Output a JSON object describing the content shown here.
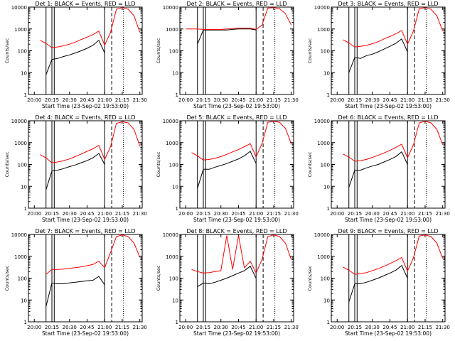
{
  "style": {
    "events_color": "#000000",
    "lld_color": "#ff0000",
    "axis_color": "#000000"
  },
  "chart_data": [
    {
      "type": "line",
      "title": "Det 1: BLACK = Events, RED = LLD",
      "ylabel": "Counts/sec",
      "xlabel": "Start Time (23-Sep-02 19:53:00)",
      "yscale": "log",
      "ylim": [
        1,
        10000
      ],
      "xticks": [
        "20:00",
        "20:15",
        "20:30",
        "20:45",
        "21:00",
        "21:15",
        "21:30"
      ],
      "yticks": [
        "1",
        "10",
        "100",
        "1000",
        "10000"
      ],
      "x": [
        "20:00",
        "20:05",
        "20:10",
        "20:15",
        "20:20",
        "20:25",
        "20:30",
        "20:35",
        "20:40",
        "20:45",
        "20:50",
        "20:55",
        "21:00",
        "21:05",
        "21:10",
        "21:15",
        "21:20",
        "21:25",
        "21:30"
      ],
      "series": [
        {
          "name": "Events",
          "values": [
            null,
            null,
            8,
            40,
            45,
            55,
            65,
            80,
            100,
            130,
            180,
            300,
            80,
            null,
            null,
            null,
            null,
            null,
            null
          ]
        },
        {
          "name": "LLD",
          "values": [
            null,
            300,
            220,
            140,
            150,
            170,
            200,
            250,
            330,
            420,
            550,
            800,
            180,
            700,
            8000,
            9500,
            8000,
            4000,
            700
          ]
        }
      ]
    },
    {
      "type": "line",
      "title": "Det 2: BLACK = Events, RED = LLD",
      "ylabel": "Counts/sec",
      "xlabel": "Start Time (23-Sep-02 19:53:00)",
      "yscale": "log",
      "ylim": [
        1,
        10000
      ],
      "xticks": [
        "20:00",
        "20:15",
        "20:30",
        "20:45",
        "21:00",
        "21:15",
        "21:30"
      ],
      "yticks": [
        "1",
        "10",
        "100",
        "1000",
        "10000"
      ],
      "x": [
        "20:00",
        "20:05",
        "20:10",
        "20:15",
        "20:20",
        "20:25",
        "20:30",
        "20:35",
        "20:40",
        "20:45",
        "20:50",
        "20:55",
        "21:00",
        "21:05",
        "21:10",
        "21:15",
        "21:20",
        "21:25",
        "21:30"
      ],
      "series": [
        {
          "name": "Events",
          "values": [
            null,
            null,
            200,
            900,
            900,
            900,
            900,
            900,
            950,
            1000,
            1000,
            1000,
            900,
            null,
            null,
            null,
            null,
            null,
            null
          ]
        },
        {
          "name": "LLD",
          "values": [
            1000,
            1000,
            1000,
            950,
            950,
            950,
            950,
            1000,
            1050,
            1100,
            1100,
            1100,
            950,
            1500,
            9000,
            9500,
            8500,
            5000,
            1500
          ]
        }
      ]
    },
    {
      "type": "line",
      "title": "Det 3: BLACK = Events, RED = LLD",
      "ylabel": "Counts/sec",
      "xlabel": "Start Time (23-Sep-02 19:53:00)",
      "yscale": "log",
      "ylim": [
        1,
        10000
      ],
      "xticks": [
        "20:00",
        "20:15",
        "20:30",
        "20:45",
        "21:00",
        "21:15",
        "21:30"
      ],
      "yticks": [
        "1",
        "10",
        "100",
        "1000",
        "10000"
      ],
      "x": [
        "20:00",
        "20:05",
        "20:10",
        "20:15",
        "20:20",
        "20:25",
        "20:30",
        "20:35",
        "20:40",
        "20:45",
        "20:50",
        "20:55",
        "21:00",
        "21:05",
        "21:10",
        "21:15",
        "21:20",
        "21:25",
        "21:30"
      ],
      "series": [
        {
          "name": "Events",
          "values": [
            null,
            null,
            10,
            50,
            45,
            60,
            70,
            90,
            120,
            160,
            220,
            350,
            90,
            null,
            null,
            null,
            null,
            null,
            null
          ]
        },
        {
          "name": "LLD",
          "values": [
            null,
            320,
            230,
            150,
            160,
            180,
            210,
            260,
            350,
            450,
            600,
            850,
            200,
            800,
            8500,
            9500,
            8000,
            4000,
            800
          ]
        }
      ]
    },
    {
      "type": "line",
      "title": "Det 4: BLACK = Events, RED = LLD",
      "ylabel": "Counts/sec",
      "xlabel": "Start Time (23-Sep-02 19:53:00)",
      "yscale": "log",
      "ylim": [
        1,
        10000
      ],
      "xticks": [
        "20:00",
        "20:15",
        "20:30",
        "20:45",
        "21:00",
        "21:15",
        "21:30"
      ],
      "yticks": [
        "1",
        "10",
        "100",
        "1000",
        "10000"
      ],
      "x": [
        "20:00",
        "20:05",
        "20:10",
        "20:15",
        "20:20",
        "20:25",
        "20:30",
        "20:35",
        "20:40",
        "20:45",
        "20:50",
        "20:55",
        "21:00",
        "21:05",
        "21:10",
        "21:15",
        "21:20",
        "21:25",
        "21:30"
      ],
      "series": [
        {
          "name": "Events",
          "values": [
            null,
            null,
            7,
            50,
            55,
            65,
            80,
            95,
            120,
            150,
            200,
            320,
            100,
            null,
            null,
            null,
            null,
            null,
            null
          ]
        },
        {
          "name": "LLD",
          "values": [
            null,
            280,
            200,
            120,
            130,
            150,
            180,
            230,
            300,
            400,
            520,
            750,
            170,
            650,
            7500,
            9000,
            8000,
            4000,
            700
          ]
        }
      ]
    },
    {
      "type": "line",
      "title": "Det 5: BLACK = Events, RED = LLD",
      "ylabel": "Counts/sec",
      "xlabel": "Start Time (23-Sep-02 19:53:00)",
      "yscale": "log",
      "ylim": [
        1,
        10000
      ],
      "xticks": [
        "20:00",
        "20:15",
        "20:30",
        "20:45",
        "21:00",
        "21:15",
        "21:30"
      ],
      "yticks": [
        "1",
        "10",
        "100",
        "1000",
        "10000"
      ],
      "x": [
        "20:00",
        "20:05",
        "20:10",
        "20:15",
        "20:20",
        "20:25",
        "20:30",
        "20:35",
        "20:40",
        "20:45",
        "20:50",
        "20:55",
        "21:00",
        "21:05",
        "21:10",
        "21:15",
        "21:20",
        "21:25",
        "21:30"
      ],
      "series": [
        {
          "name": "Events",
          "values": [
            null,
            null,
            8,
            60,
            60,
            75,
            90,
            110,
            140,
            180,
            250,
            400,
            110,
            null,
            null,
            null,
            null,
            null,
            null
          ]
        },
        {
          "name": "LLD",
          "values": [
            null,
            350,
            250,
            160,
            170,
            190,
            230,
            290,
            380,
            480,
            650,
            900,
            220,
            900,
            8500,
            9500,
            8500,
            4500,
            900
          ]
        }
      ]
    },
    {
      "type": "line",
      "title": "Det 6: BLACK = Events, RED = LLD",
      "ylabel": "Counts/sec",
      "xlabel": "Start Time (23-Sep-02 19:53:00)",
      "yscale": "log",
      "ylim": [
        1,
        10000
      ],
      "xticks": [
        "20:00",
        "20:15",
        "20:30",
        "20:45",
        "21:00",
        "21:15",
        "21:30"
      ],
      "yticks": [
        "1",
        "10",
        "100",
        "1000",
        "10000"
      ],
      "x": [
        "20:00",
        "20:05",
        "20:10",
        "20:15",
        "20:20",
        "20:25",
        "20:30",
        "20:35",
        "20:40",
        "20:45",
        "20:50",
        "20:55",
        "21:00",
        "21:05",
        "21:10",
        "21:15",
        "21:20",
        "21:25",
        "21:30"
      ],
      "series": [
        {
          "name": "Events",
          "values": [
            null,
            null,
            9,
            55,
            55,
            70,
            85,
            100,
            130,
            170,
            230,
            380,
            100,
            null,
            null,
            null,
            null,
            null,
            null
          ]
        },
        {
          "name": "LLD",
          "values": [
            null,
            300,
            220,
            140,
            150,
            170,
            210,
            260,
            340,
            440,
            600,
            850,
            200,
            800,
            8000,
            9500,
            8000,
            4000,
            800
          ]
        }
      ]
    },
    {
      "type": "line",
      "title": "Det 7: BLACK = Events, RED = LLD",
      "ylabel": "Counts/sec",
      "xlabel": "Start Time (23-Sep-02 19:53:00)",
      "yscale": "log",
      "ylim": [
        1,
        10000
      ],
      "xticks": [
        "20:00",
        "20:15",
        "20:30",
        "20:45",
        "21:00",
        "21:15",
        "21:30"
      ],
      "yticks": [
        "1",
        "10",
        "100",
        "1000",
        "10000"
      ],
      "x": [
        "20:00",
        "20:05",
        "20:10",
        "20:15",
        "20:20",
        "20:25",
        "20:30",
        "20:35",
        "20:40",
        "20:45",
        "20:50",
        "20:55",
        "21:00",
        "21:05",
        "21:10",
        "21:15",
        "21:20",
        "21:25",
        "21:30"
      ],
      "series": [
        {
          "name": "Events",
          "values": [
            null,
            null,
            5,
            60,
            55,
            55,
            60,
            65,
            70,
            75,
            80,
            120,
            50,
            null,
            null,
            null,
            null,
            null,
            null
          ]
        },
        {
          "name": "LLD",
          "values": [
            null,
            null,
            150,
            250,
            250,
            260,
            280,
            300,
            330,
            370,
            420,
            600,
            300,
            1500,
            8000,
            9500,
            8000,
            4000,
            900
          ]
        }
      ]
    },
    {
      "type": "line",
      "title": "Det 8: BLACK = Events, RED = LLD",
      "ylabel": "Counts/sec",
      "xlabel": "Start Time (23-Sep-02 19:53:00)",
      "yscale": "log",
      "ylim": [
        1,
        10000
      ],
      "xticks": [
        "20:00",
        "20:15",
        "20:30",
        "20:45",
        "21:00",
        "21:15",
        "21:30"
      ],
      "yticks": [
        "1",
        "10",
        "100",
        "1000",
        "10000"
      ],
      "x": [
        "20:00",
        "20:05",
        "20:10",
        "20:15",
        "20:20",
        "20:25",
        "20:30",
        "20:35",
        "20:40",
        "20:45",
        "20:50",
        "20:55",
        "21:00",
        "21:05",
        "21:10",
        "21:15",
        "21:20",
        "21:25",
        "21:30"
      ],
      "series": [
        {
          "name": "Events",
          "values": [
            null,
            null,
            40,
            60,
            55,
            65,
            80,
            100,
            130,
            170,
            220,
            350,
            100,
            null,
            null,
            null,
            null,
            null,
            null
          ]
        },
        {
          "name": "LLD",
          "values": [
            null,
            250,
            200,
            170,
            180,
            200,
            220,
            9000,
            250,
            9000,
            300,
            600,
            170,
            700,
            8000,
            9500,
            8000,
            4000,
            700
          ]
        }
      ]
    },
    {
      "type": "line",
      "title": "Det 9: BLACK = Events, RED = LLD",
      "ylabel": "Counts/sec",
      "xlabel": "Start Time (23-Sep-02 19:53:00)",
      "yscale": "log",
      "ylim": [
        1,
        10000
      ],
      "xticks": [
        "20:00",
        "20:15",
        "20:30",
        "20:45",
        "21:00",
        "21:15",
        "21:30"
      ],
      "yticks": [
        "1",
        "10",
        "100",
        "1000",
        "10000"
      ],
      "x": [
        "20:00",
        "20:05",
        "20:10",
        "20:15",
        "20:20",
        "20:25",
        "20:30",
        "20:35",
        "20:40",
        "20:45",
        "20:50",
        "20:55",
        "21:00",
        "21:05",
        "21:10",
        "21:15",
        "21:20",
        "21:25",
        "21:30"
      ],
      "series": [
        {
          "name": "Events",
          "values": [
            null,
            null,
            8,
            55,
            55,
            65,
            80,
            100,
            130,
            170,
            230,
            380,
            100,
            null,
            null,
            null,
            null,
            null,
            null
          ]
        },
        {
          "name": "LLD",
          "values": [
            null,
            320,
            230,
            150,
            160,
            180,
            220,
            270,
            350,
            460,
            620,
            880,
            210,
            850,
            8500,
            9500,
            8000,
            4000,
            800
          ]
        }
      ]
    }
  ]
}
